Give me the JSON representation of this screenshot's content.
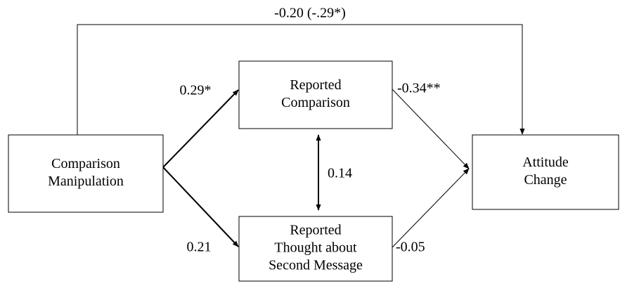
{
  "nodes": [
    {
      "lines": [
        "Comparison",
        "Manipulation"
      ]
    },
    {
      "lines": [
        "Reported",
        "Comparison"
      ]
    },
    {
      "lines": [
        "Reported",
        "Thought about",
        "Second Message"
      ]
    },
    {
      "lines": [
        "Attitude",
        "Change"
      ]
    }
  ],
  "edges": [
    {
      "label": "-0.20 (-.29*)"
    },
    {
      "label": "0.29*"
    },
    {
      "label": "0.21"
    },
    {
      "label": "0.14"
    },
    {
      "label": "-0.34**"
    },
    {
      "label": "-0.05"
    }
  ]
}
